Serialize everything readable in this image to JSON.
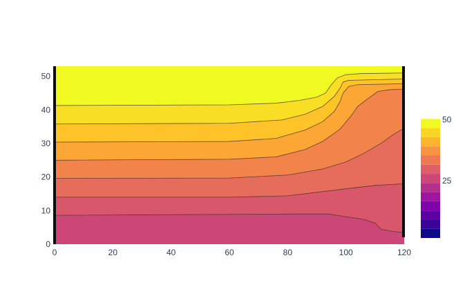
{
  "chart_data": {
    "type": "contour",
    "title": "",
    "xlabel": "",
    "ylabel": "",
    "xlim": [
      0,
      120
    ],
    "ylim": [
      0,
      53
    ],
    "x_ticks": [
      0,
      20,
      40,
      60,
      80,
      100,
      120
    ],
    "y_ticks": [
      0,
      10,
      20,
      30,
      40,
      50
    ],
    "colorscale": "plasma",
    "colorbar": {
      "range": [
        1.5,
        69
      ],
      "ticks": [
        25,
        50
      ],
      "levels": [
        1.5,
        5.25,
        9,
        12.75,
        16.5,
        20.25,
        24,
        27.75,
        31.5,
        35.25,
        39,
        42.75,
        46.5,
        50.25,
        54,
        57.75,
        61.5,
        65.25,
        69
      ],
      "colors": [
        "#0d0887",
        "#3a049a",
        "#5c01a6",
        "#7e03a8",
        "#9c179e",
        "#b52f8c",
        "#cc4778",
        "#de5f65",
        "#ed7953",
        "#f89441",
        "#fdb42f",
        "#fbd524",
        "#f0f921"
      ]
    },
    "contours": [
      {
        "level": 39,
        "fill": "#cc4778",
        "points": [
          [
            0,
            8.6
          ],
          [
            85,
            9.0
          ],
          [
            94,
            9.0
          ],
          [
            100,
            8.2
          ],
          [
            106,
            7.4
          ],
          [
            110,
            6.3
          ],
          [
            112,
            4.5
          ],
          [
            116,
            3.8
          ],
          [
            120,
            3.5
          ]
        ]
      },
      {
        "level": 42.75,
        "fill": "#d8576b",
        "points": [
          [
            0,
            14.0
          ],
          [
            60,
            14.0
          ],
          [
            80,
            14.4
          ],
          [
            100,
            16.5
          ],
          [
            110,
            17.5
          ],
          [
            120,
            18.0
          ]
        ]
      },
      {
        "level": 46.5,
        "fill": "#e66c5c",
        "points": [
          [
            0,
            19.6
          ],
          [
            60,
            19.7
          ],
          [
            80,
            20.6
          ],
          [
            92,
            22.4
          ],
          [
            100,
            24.5
          ],
          [
            106,
            27.0
          ],
          [
            112,
            30.0
          ],
          [
            116,
            32.5
          ],
          [
            120,
            34.6
          ]
        ]
      },
      {
        "level": 50.25,
        "fill": "#f2844b",
        "points": [
          [
            0,
            25.0
          ],
          [
            60,
            25.3
          ],
          [
            76,
            26.0
          ],
          [
            86,
            28.2
          ],
          [
            92,
            30.6
          ],
          [
            98,
            34.3
          ],
          [
            102,
            38.5
          ],
          [
            104,
            41.0
          ],
          [
            107,
            43.0
          ],
          [
            111,
            45.5
          ],
          [
            115,
            46.0
          ],
          [
            120,
            46.2
          ]
        ]
      },
      {
        "level": 54,
        "fill": "#fca636",
        "points": [
          [
            0,
            30.4
          ],
          [
            60,
            30.6
          ],
          [
            76,
            31.5
          ],
          [
            86,
            34.0
          ],
          [
            92,
            36.5
          ],
          [
            96,
            39.5
          ],
          [
            98,
            42.5
          ],
          [
            99,
            45.0
          ],
          [
            101,
            47.0
          ],
          [
            104,
            47.5
          ],
          [
            120,
            47.8
          ]
        ]
      },
      {
        "level": 57.75,
        "fill": "#fdc328",
        "points": [
          [
            0,
            35.8
          ],
          [
            60,
            36.0
          ],
          [
            78,
            37.0
          ],
          [
            86,
            38.7
          ],
          [
            92,
            41.0
          ],
          [
            96,
            44.0
          ],
          [
            98,
            46.5
          ],
          [
            99,
            48.3
          ],
          [
            101,
            48.8
          ],
          [
            110,
            49.0
          ],
          [
            120,
            49.2
          ]
        ]
      },
      {
        "level": 61.5,
        "fill": "#f8df25",
        "points": [
          [
            0,
            41.3
          ],
          [
            60,
            41.5
          ],
          [
            76,
            42.0
          ],
          [
            84,
            42.8
          ],
          [
            90,
            43.8
          ],
          [
            93,
            45.0
          ],
          [
            95,
            47.5
          ],
          [
            97,
            49.5
          ],
          [
            100,
            50.5
          ],
          [
            105,
            50.8
          ],
          [
            120,
            51.0
          ]
        ]
      },
      {
        "level": 65.25,
        "fill": "#f0f921",
        "points": []
      }
    ]
  }
}
